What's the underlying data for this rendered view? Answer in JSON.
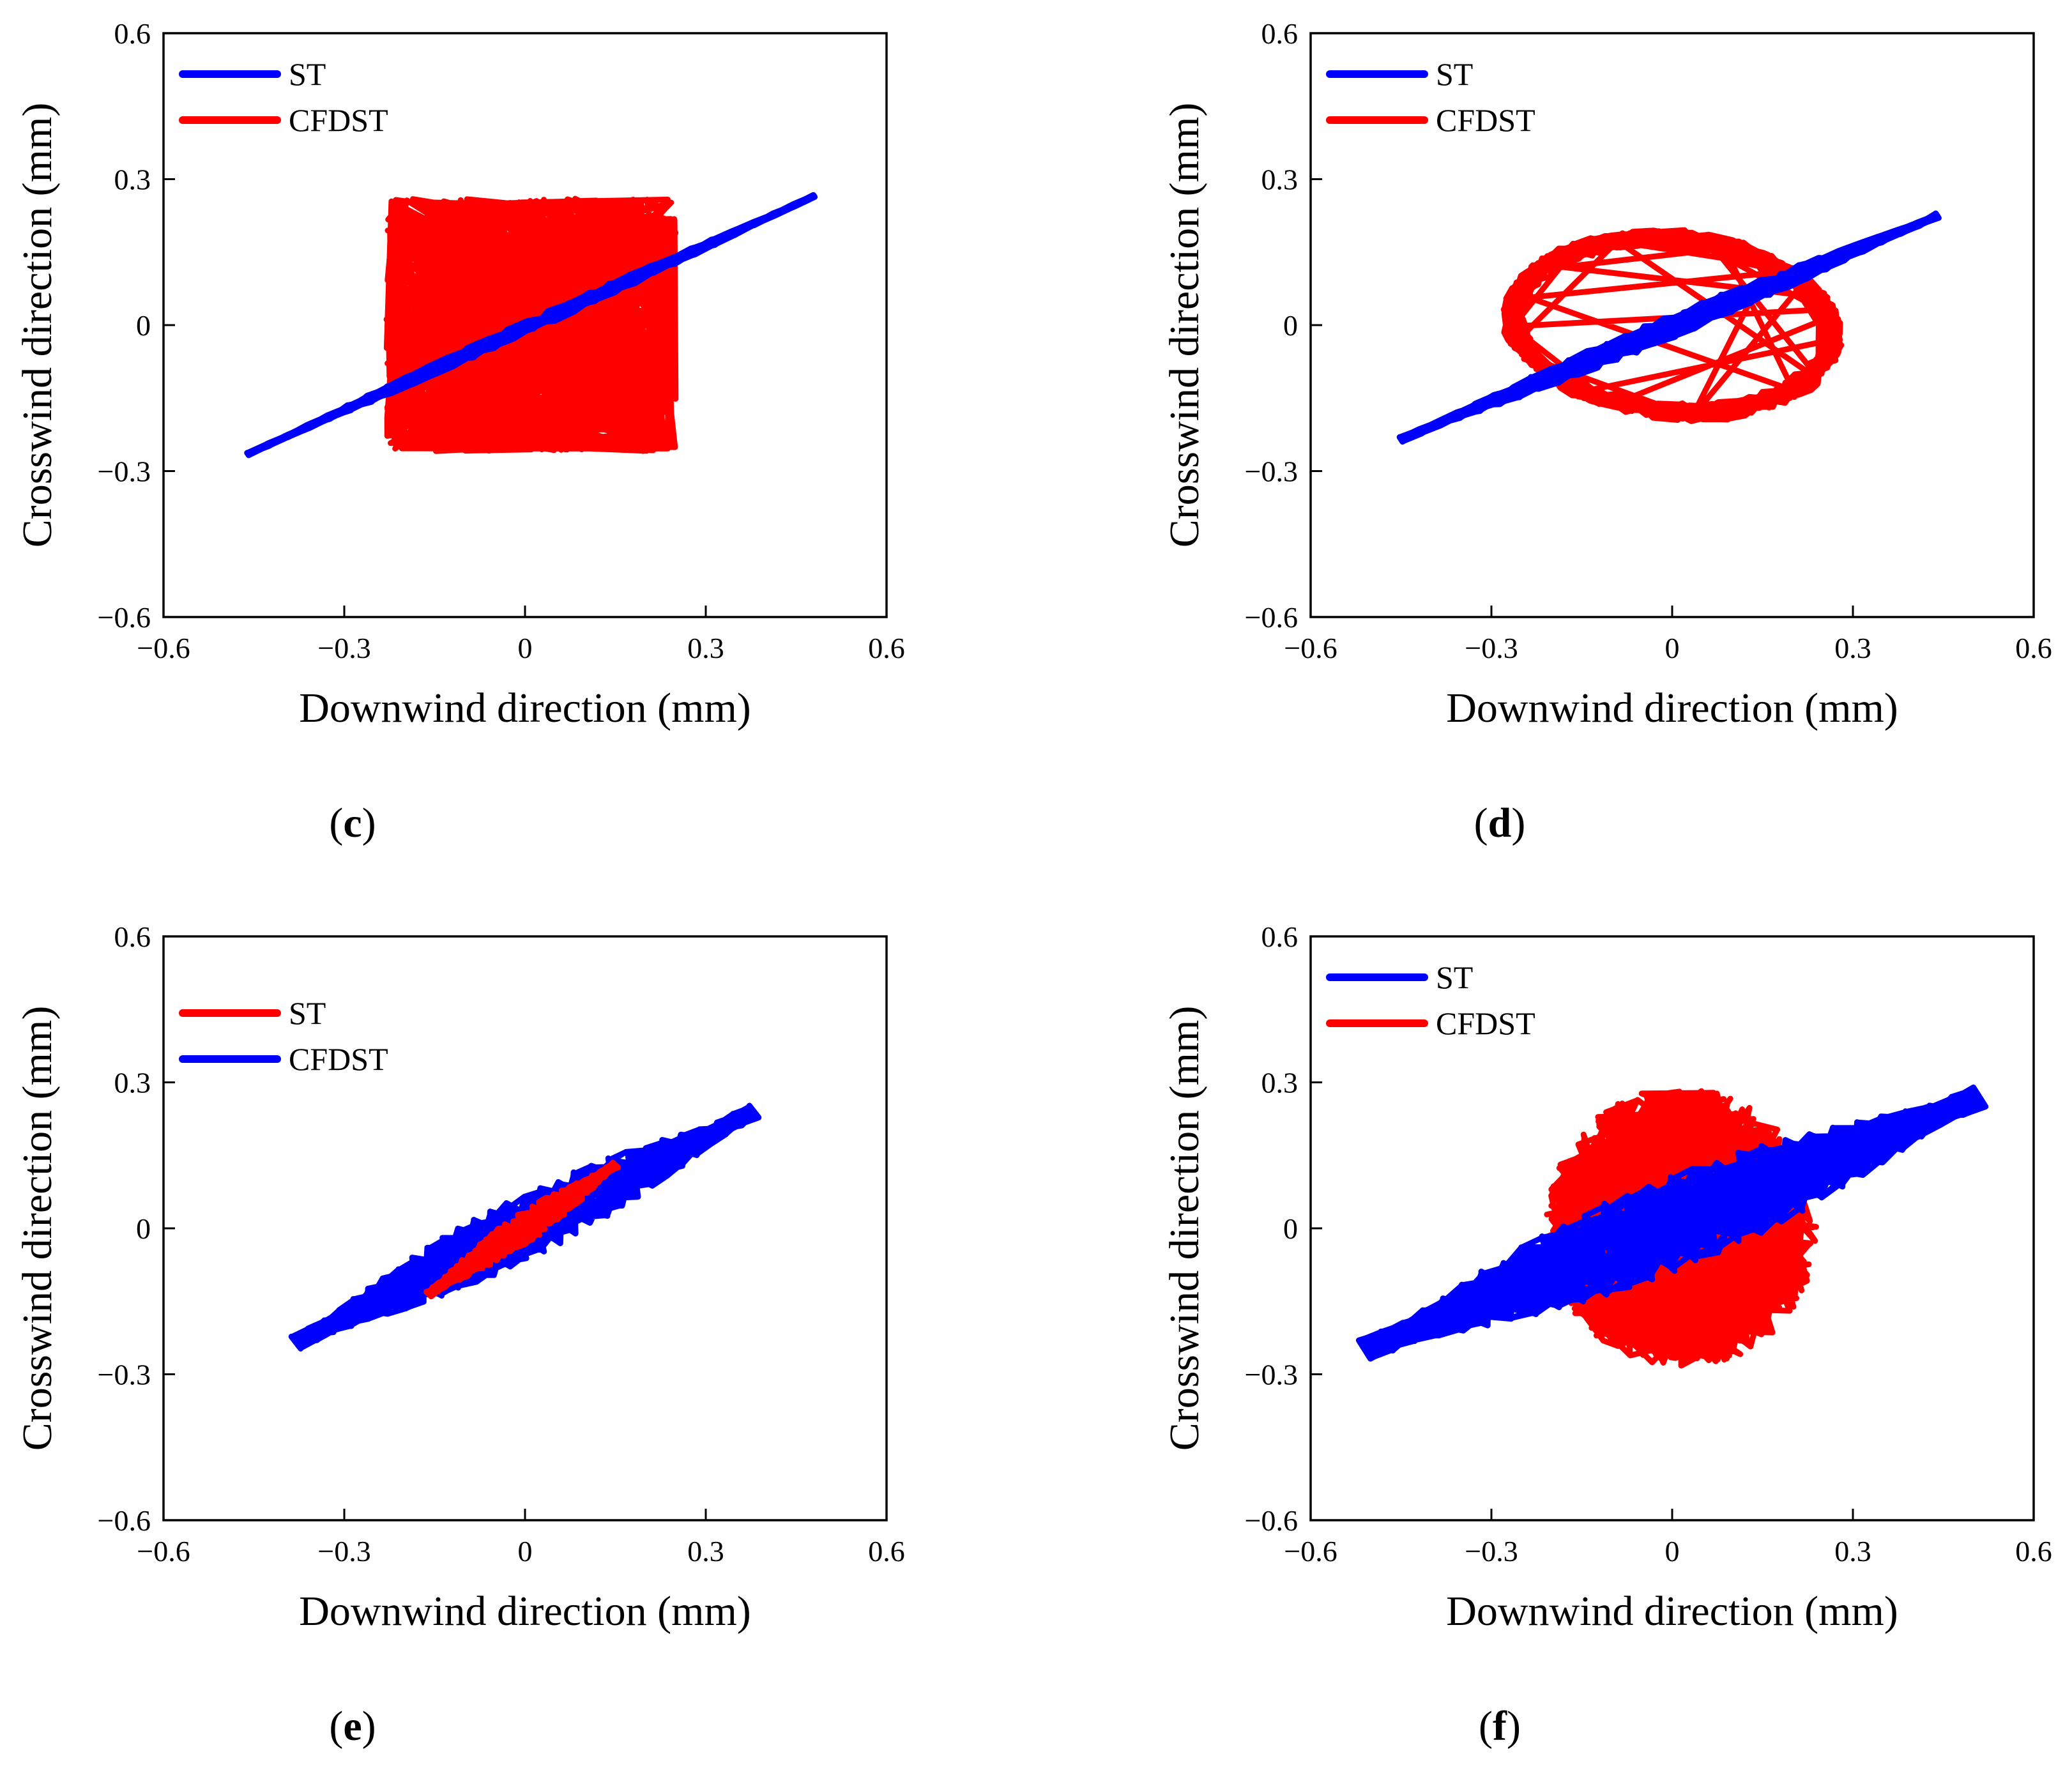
{
  "figure_title": "",
  "chart_data": [
    {
      "panel": "c",
      "type": "line",
      "xlabel": "Downwind direction (mm)",
      "ylabel": "Crosswind direction (mm)",
      "xlim": [
        -0.6,
        0.6
      ],
      "ylim": [
        -0.6,
        0.6
      ],
      "xticks": [
        -0.6,
        -0.3,
        0,
        0.3,
        0.6
      ],
      "yticks": [
        -0.6,
        -0.3,
        0,
        0.3,
        0.6
      ],
      "xtick_labels": [
        "−0.6",
        "−0.3",
        "0",
        "0.3",
        "0.6"
      ],
      "ytick_labels": [
        "−0.6",
        "−0.3",
        "0",
        "0.3",
        "0.6"
      ],
      "grid": false,
      "legend_position": "top-left",
      "legend": [
        {
          "name": "ST",
          "color": "#0000ff"
        },
        {
          "name": "CFDST",
          "color": "#ff0000"
        }
      ],
      "series": [
        {
          "name": "CFDST",
          "color": "#ff0000",
          "kind": "box-random",
          "x_range": [
            -0.23,
            0.25
          ],
          "y_range": [
            -0.26,
            0.26
          ],
          "loops": 70
        },
        {
          "name": "ST",
          "color": "#0000ff",
          "kind": "line-band",
          "from": [
            -0.46,
            -0.265
          ],
          "to": [
            0.48,
            0.265
          ],
          "thickness": 0.012,
          "loops": 10
        }
      ],
      "caption": "(c)"
    },
    {
      "panel": "d",
      "type": "line",
      "xlabel": "Downwind direction (mm)",
      "ylabel": "Crosswind direction (mm)",
      "xlim": [
        -0.6,
        0.6
      ],
      "ylim": [
        -0.6,
        0.6
      ],
      "xticks": [
        -0.6,
        -0.3,
        0,
        0.3,
        0.6
      ],
      "yticks": [
        -0.6,
        -0.3,
        0,
        0.3,
        0.6
      ],
      "xtick_labels": [
        "−0.6",
        "−0.3",
        "0",
        "0.3",
        "0.6"
      ],
      "ytick_labels": [
        "−0.6",
        "−0.3",
        "0",
        "0.3",
        "0.6"
      ],
      "grid": false,
      "legend_position": "top-left",
      "legend": [
        {
          "name": "ST",
          "color": "#0000ff"
        },
        {
          "name": "CFDST",
          "color": "#ff0000"
        }
      ],
      "series": [
        {
          "name": "CFDST",
          "color": "#ff0000",
          "kind": "ellipse-loops",
          "center": [
            0.0,
            0.0
          ],
          "a": 0.27,
          "b": 0.185,
          "tilt_deg": -8,
          "loops": 30
        },
        {
          "name": "ST",
          "color": "#0000ff",
          "kind": "line-band",
          "from": [
            -0.45,
            -0.235
          ],
          "to": [
            0.44,
            0.225
          ],
          "thickness": 0.022,
          "loops": 12
        }
      ],
      "caption": "(d)"
    },
    {
      "panel": "e",
      "type": "line",
      "xlabel": "Downwind direction (mm)",
      "ylabel": "Crosswind direction (mm)",
      "xlim": [
        -0.6,
        0.6
      ],
      "ylim": [
        -0.6,
        0.6
      ],
      "xticks": [
        -0.6,
        -0.3,
        0,
        0.3,
        0.6
      ],
      "yticks": [
        -0.6,
        -0.3,
        0,
        0.3,
        0.6
      ],
      "xtick_labels": [
        "−0.6",
        "−0.3",
        "0",
        "0.3",
        "0.6"
      ],
      "ytick_labels": [
        "−0.6",
        "−0.3",
        "0",
        "0.3",
        "0.6"
      ],
      "grid": false,
      "legend_position": "top-left",
      "legend": [
        {
          "name": "ST",
          "color": "#ff0000"
        },
        {
          "name": "CFDST",
          "color": "#0000ff"
        }
      ],
      "series": [
        {
          "name": "CFDST",
          "color": "#0000ff",
          "kind": "line-band",
          "from": [
            -0.38,
            -0.235
          ],
          "to": [
            0.38,
            0.24
          ],
          "thickness": 0.06,
          "loops": 22
        },
        {
          "name": "ST",
          "color": "#ff0000",
          "kind": "line-band",
          "from": [
            -0.16,
            -0.135
          ],
          "to": [
            0.15,
            0.13
          ],
          "thickness": 0.028,
          "loops": 12
        }
      ],
      "caption": "(e)"
    },
    {
      "panel": "f",
      "type": "line",
      "xlabel": "Downwind direction (mm)",
      "ylabel": "Crosswind direction (mm)",
      "xlim": [
        -0.6,
        0.6
      ],
      "ylim": [
        -0.6,
        0.6
      ],
      "xticks": [
        -0.6,
        -0.3,
        0,
        0.3,
        0.6
      ],
      "yticks": [
        -0.6,
        -0.3,
        0,
        0.3,
        0.6
      ],
      "xtick_labels": [
        "−0.6",
        "−0.3",
        "0",
        "0.3",
        "0.6"
      ],
      "ytick_labels": [
        "−0.6",
        "−0.3",
        "0",
        "0.3",
        "0.6"
      ],
      "grid": false,
      "legend_position": "top-left",
      "legend": [
        {
          "name": "ST",
          "color": "#0000ff"
        },
        {
          "name": "CFDST",
          "color": "#ff0000"
        }
      ],
      "series": [
        {
          "name": "CFDST",
          "color": "#ff0000",
          "kind": "blob-random",
          "x_range": [
            -0.21,
            0.24
          ],
          "y_range": [
            -0.29,
            0.29
          ],
          "loops": 70
        },
        {
          "name": "ST",
          "color": "#0000ff",
          "kind": "line-band",
          "from": [
            -0.51,
            -0.25
          ],
          "to": [
            0.51,
            0.27
          ],
          "thickness": 0.09,
          "loops": 34
        }
      ],
      "caption": "(f)"
    }
  ]
}
